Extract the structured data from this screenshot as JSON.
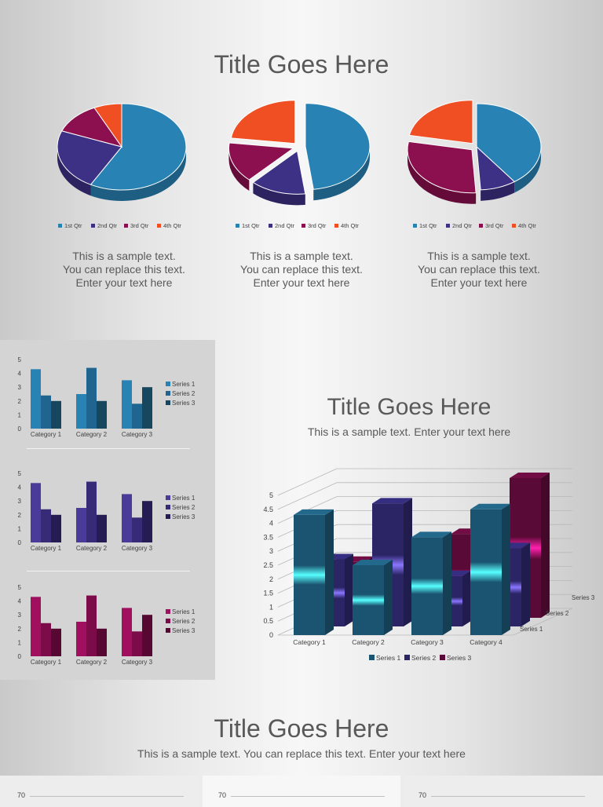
{
  "section1": {
    "title": "Title Goes Here",
    "captions": [
      [
        "This is a sample text.",
        "You can replace this text.",
        "Enter your text here"
      ],
      [
        "This is a sample text.",
        "You can replace this text.",
        "Enter your text here"
      ],
      [
        "This is a sample text.",
        "You can replace this text.",
        "Enter your text here"
      ]
    ]
  },
  "section2": {
    "title": "Title Goes Here",
    "subtitle": "This is a sample text. Enter your text here"
  },
  "section3": {
    "title": "Title Goes Here",
    "subtitle": "This is a sample text. You can replace this text. Enter your text here",
    "bottom_axis_labels": [
      "70",
      "70",
      "70"
    ]
  },
  "colors": {
    "blue": "#2882b4",
    "purple": "#3d3185",
    "magenta": "#8c0f4f",
    "orange": "#f04e23",
    "bar_dark": "#1f4e68",
    "bar_darker": "#173a4f"
  },
  "chart_data": [
    {
      "type": "pie",
      "id": "pie1",
      "categories": [
        "1st Qtr",
        "2nd Qtr",
        "3rd Qtr",
        "4th Qtr"
      ],
      "values": [
        58,
        23,
        12,
        7
      ],
      "exploded": [
        false,
        false,
        false,
        false
      ],
      "colors": [
        "#2882b4",
        "#3d3185",
        "#8c0f4f",
        "#f04e23"
      ]
    },
    {
      "type": "pie",
      "id": "pie2",
      "categories": [
        "1st Qtr",
        "2nd Qtr",
        "3rd Qtr",
        "4th Qtr"
      ],
      "values": [
        48,
        14,
        15,
        23
      ],
      "exploded": [
        true,
        true,
        true,
        true
      ],
      "colors": [
        "#2882b4",
        "#3d3185",
        "#8c0f4f",
        "#f04e23"
      ]
    },
    {
      "type": "pie",
      "id": "pie3",
      "categories": [
        "1st Qtr",
        "2nd Qtr",
        "3rd Qtr",
        "4th Qtr"
      ],
      "values": [
        40,
        9,
        29,
        22
      ],
      "exploded": [
        false,
        false,
        true,
        true
      ],
      "colors": [
        "#2882b4",
        "#3d3185",
        "#8c0f4f",
        "#f04e23"
      ]
    },
    {
      "type": "bar",
      "id": "smallbar1",
      "categories": [
        "Category 1",
        "Category 2",
        "Category 3"
      ],
      "series": [
        {
          "name": "Series 1",
          "values": [
            4.3,
            2.5,
            3.5
          ]
        },
        {
          "name": "Series 2",
          "values": [
            2.4,
            4.4,
            1.8
          ]
        },
        {
          "name": "Series 3",
          "values": [
            2,
            2,
            3
          ]
        }
      ],
      "ylim": [
        0,
        5
      ],
      "yticks": [
        "0",
        "1",
        "2",
        "3",
        "4",
        "5"
      ],
      "colors": [
        "#2882b4",
        "#1f6590",
        "#17475f"
      ]
    },
    {
      "type": "bar",
      "id": "smallbar2",
      "categories": [
        "Category 1",
        "Category 2",
        "Category 3"
      ],
      "series": [
        {
          "name": "Series 1",
          "values": [
            4.3,
            2.5,
            3.5
          ]
        },
        {
          "name": "Series 2",
          "values": [
            2.4,
            4.4,
            1.8
          ]
        },
        {
          "name": "Series 3",
          "values": [
            2,
            2,
            3
          ]
        }
      ],
      "ylim": [
        0,
        5
      ],
      "yticks": [
        "0",
        "1",
        "2",
        "3",
        "4",
        "5"
      ],
      "colors": [
        "#4a3a9a",
        "#372b78",
        "#241c52"
      ]
    },
    {
      "type": "bar",
      "id": "smallbar3",
      "categories": [
        "Category 1",
        "Category 2",
        "Category 3"
      ],
      "series": [
        {
          "name": "Series 1",
          "values": [
            4.3,
            2.5,
            3.5
          ]
        },
        {
          "name": "Series 2",
          "values": [
            2.4,
            4.4,
            1.8
          ]
        },
        {
          "name": "Series 3",
          "values": [
            2,
            2,
            3
          ]
        }
      ],
      "ylim": [
        0,
        5
      ],
      "yticks": [
        "0",
        "1",
        "2",
        "3",
        "4",
        "5"
      ],
      "colors": [
        "#a0105e",
        "#7c0c49",
        "#560833"
      ]
    },
    {
      "type": "bar",
      "id": "bar3d",
      "categories": [
        "Category 1",
        "Category 2",
        "Category 3",
        "Category 4"
      ],
      "series": [
        {
          "name": "Series 1",
          "values": [
            4.3,
            2.5,
            3.5,
            4.5
          ]
        },
        {
          "name": "Series 2",
          "values": [
            2.4,
            4.4,
            1.8,
            2.8
          ]
        },
        {
          "name": "Series 3",
          "values": [
            2,
            2,
            3,
            5
          ]
        }
      ],
      "ylim": [
        0,
        5
      ],
      "yticks": [
        "0",
        "0.5",
        "1",
        "1.5",
        "2",
        "2.5",
        "3",
        "3.5",
        "4",
        "4.5",
        "5"
      ],
      "colors": [
        "#1b5470",
        "#2b2566",
        "#5a0a36"
      ]
    }
  ]
}
